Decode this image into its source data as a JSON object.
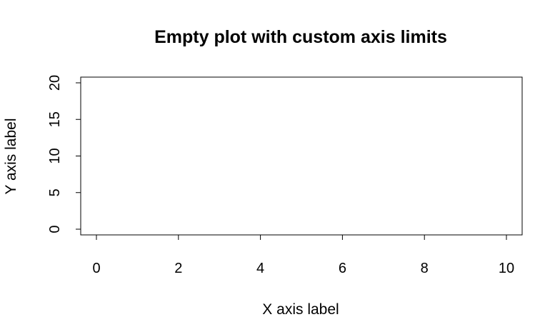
{
  "chart_data": {
    "type": "scatter",
    "title": "Empty plot with custom axis limits",
    "xlabel": "X axis label",
    "ylabel": "Y axis label",
    "xlim": [
      0,
      10
    ],
    "ylim": [
      0,
      20
    ],
    "x_ticks": [
      0,
      2,
      4,
      6,
      8,
      10
    ],
    "y_ticks": [
      0,
      5,
      10,
      15,
      20
    ],
    "series": [],
    "grid": false,
    "legend": "none"
  }
}
